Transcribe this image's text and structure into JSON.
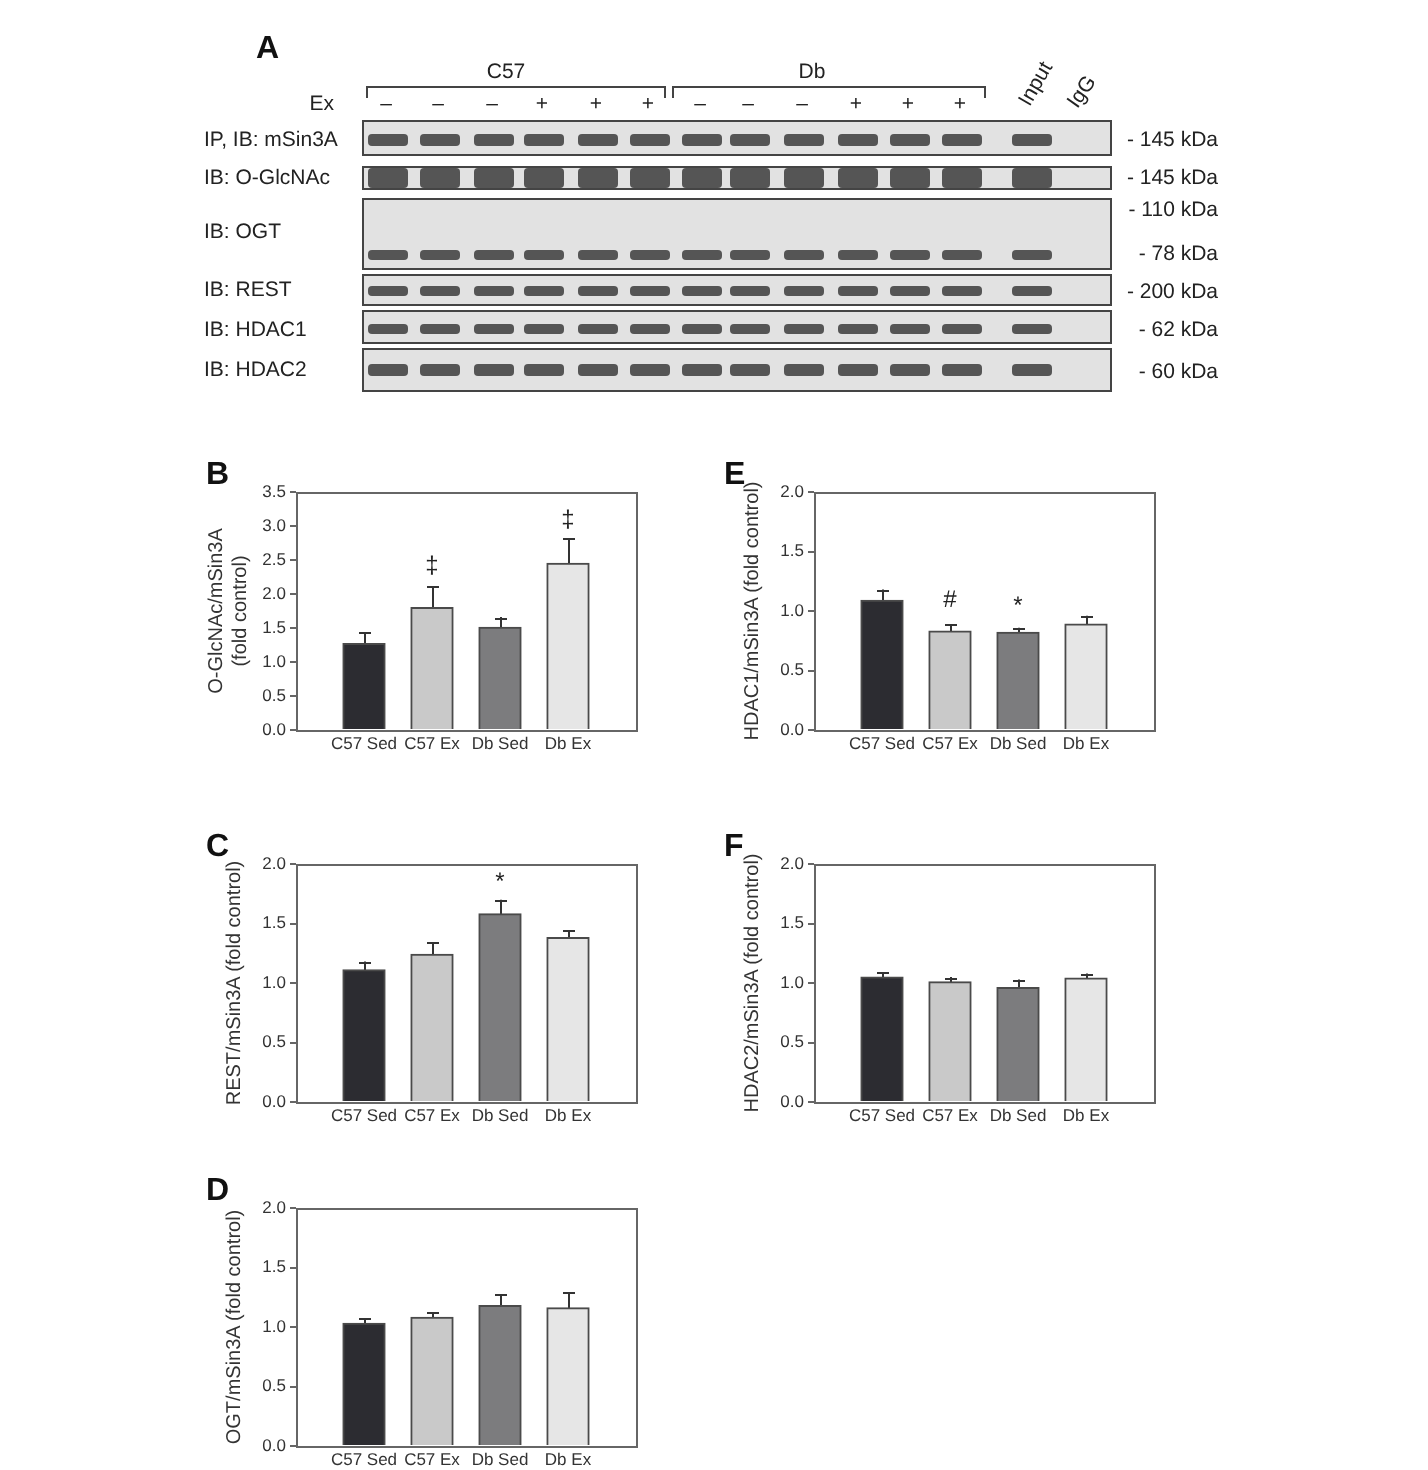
{
  "chart_data": [
    {
      "type": "other",
      "title": "A",
      "annotations": [
        "C57",
        "Db",
        "Ex",
        "–",
        "–",
        "–",
        "+",
        "+",
        "+",
        "–",
        "–",
        "–",
        "+",
        "+",
        "+",
        "Input",
        "IgG",
        "IP, IB: mSin3A",
        "IB: O-GlcNAc",
        "IB: OGT",
        "IB: REST",
        "IB: HDAC1",
        "IB: HDAC2",
        "- 145 kDa",
        "- 145 kDa",
        "- 110 kDa",
        "- 78 kDa",
        "- 200 kDa",
        "- 62 kDa",
        "- 60 kDa"
      ]
    },
    {
      "type": "bar",
      "title": "B",
      "ylabel": "O-GlcNAc/mSin3A (fold control)",
      "categories": [
        "C57 Sed",
        "C57 Ex",
        "Db Sed",
        "Db Ex"
      ],
      "values": [
        1.27,
        1.8,
        1.51,
        2.45
      ],
      "errors": [
        0.16,
        0.31,
        0.15,
        0.37
      ],
      "colors": [
        "#2c2c31",
        "#c9c9c9",
        "#7c7c7e",
        "#e6e6e6"
      ],
      "ylim": [
        0,
        3.5
      ],
      "yticks": [
        {
          "value": 0,
          "label": "0.0"
        },
        {
          "value": 0.5,
          "label": "0.5"
        },
        {
          "value": 1,
          "label": "1.0"
        },
        {
          "value": 1.5,
          "label": "1.5"
        },
        {
          "value": 2,
          "label": "2.0"
        },
        {
          "value": 2.5,
          "label": "2.5"
        },
        {
          "value": 3,
          "label": "3.0"
        },
        {
          "value": 3.5,
          "label": "3.5"
        }
      ],
      "annotations": [
        "‡",
        "‡"
      ]
    },
    {
      "type": "bar",
      "title": "E",
      "ylabel": "HDAC1/mSin3A (fold control)",
      "categories": [
        "C57 Sed",
        "C57 Ex",
        "Db Sed",
        "Db Ex"
      ],
      "values": [
        1.09,
        0.83,
        0.82,
        0.89
      ],
      "errors": [
        0.09,
        0.06,
        0.04,
        0.07
      ],
      "colors": [
        "#2c2c31",
        "#c9c9c9",
        "#7c7c7e",
        "#e6e6e6"
      ],
      "ylim": [
        0,
        2
      ],
      "yticks": [
        {
          "value": 0,
          "label": "0.0"
        },
        {
          "value": 0.5,
          "label": "0.5"
        },
        {
          "value": 1,
          "label": "1.0"
        },
        {
          "value": 1.5,
          "label": "1.5"
        },
        {
          "value": 2,
          "label": "2.0"
        }
      ],
      "annotations": [
        "#",
        "*"
      ]
    },
    {
      "type": "bar",
      "title": "C",
      "ylabel": "REST/mSin3A (fold control)",
      "categories": [
        "C57 Sed",
        "C57 Ex",
        "Db Sed",
        "Db Ex"
      ],
      "values": [
        1.11,
        1.24,
        1.58,
        1.38
      ],
      "errors": [
        0.07,
        0.1,
        0.12,
        0.06
      ],
      "colors": [
        "#2c2c31",
        "#c9c9c9",
        "#7c7c7e",
        "#e6e6e6"
      ],
      "ylim": [
        0,
        2
      ],
      "yticks": [
        {
          "value": 0,
          "label": "0.0"
        },
        {
          "value": 0.5,
          "label": "0.5"
        },
        {
          "value": 1,
          "label": "1.0"
        },
        {
          "value": 1.5,
          "label": "1.5"
        },
        {
          "value": 2,
          "label": "2.0"
        }
      ],
      "annotations": [
        "*"
      ]
    },
    {
      "type": "bar",
      "title": "F",
      "ylabel": "HDAC2/mSin3A (fold control)",
      "categories": [
        "C57 Sed",
        "C57 Ex",
        "Db Sed",
        "Db Ex"
      ],
      "values": [
        1.05,
        1.01,
        0.96,
        1.04
      ],
      "errors": [
        0.04,
        0.04,
        0.07,
        0.04
      ],
      "colors": [
        "#2c2c31",
        "#c9c9c9",
        "#7c7c7e",
        "#e6e6e6"
      ],
      "ylim": [
        0,
        2
      ],
      "yticks": [
        {
          "value": 0,
          "label": "0.0"
        },
        {
          "value": 0.5,
          "label": "0.5"
        },
        {
          "value": 1,
          "label": "1.0"
        },
        {
          "value": 1.5,
          "label": "1.5"
        },
        {
          "value": 2,
          "label": "2.0"
        }
      ]
    },
    {
      "type": "bar",
      "title": "D",
      "ylabel": "OGT/mSin3A (fold control)",
      "categories": [
        "C57 Sed",
        "C57 Ex",
        "Db Sed",
        "Db Ex"
      ],
      "values": [
        1.03,
        1.08,
        1.18,
        1.16
      ],
      "errors": [
        0.04,
        0.04,
        0.09,
        0.13
      ],
      "colors": [
        "#2c2c31",
        "#c9c9c9",
        "#7c7c7e",
        "#e6e6e6"
      ],
      "ylim": [
        0,
        2
      ],
      "yticks": [
        {
          "value": 0,
          "label": "0.0"
        },
        {
          "value": 0.5,
          "label": "0.5"
        },
        {
          "value": 1,
          "label": "1.0"
        },
        {
          "value": 1.5,
          "label": "1.5"
        },
        {
          "value": 2,
          "label": "2.0"
        }
      ]
    }
  ]
}
